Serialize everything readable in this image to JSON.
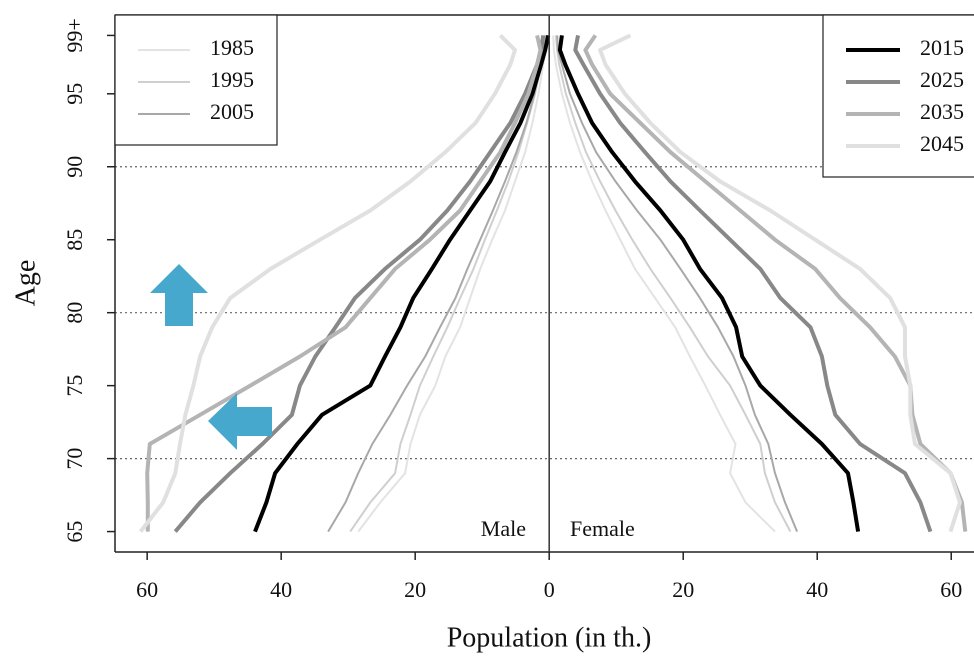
{
  "chart_data": {
    "type": "pyramid-line",
    "xlabel": "Population (in th.)",
    "ylabel": "Age",
    "annotations": {
      "male": "Male",
      "female": "Female"
    },
    "ages": [
      65,
      67,
      69,
      71,
      73,
      75,
      77,
      79,
      81,
      83,
      85,
      87,
      89,
      91,
      93,
      95,
      97,
      98,
      99
    ],
    "xlim": [
      -64.8,
      63.4
    ],
    "xticks": [
      {
        "value": -60,
        "label": "60"
      },
      {
        "value": -40,
        "label": "40"
      },
      {
        "value": -20,
        "label": "20"
      },
      0,
      20,
      40,
      60
    ],
    "ylim": [
      63.6,
      100.4
    ],
    "yticks": [
      65,
      70,
      75,
      80,
      85,
      90,
      95,
      {
        "value": 99,
        "label": "99+"
      }
    ],
    "grid_y": [
      70,
      80,
      90
    ],
    "zero_line": true,
    "series": [
      {
        "name": "1985",
        "color": "#e3e3e3",
        "width": 2,
        "legend": "top-left",
        "male": [
          -28.5,
          -25.2,
          -21.5,
          -20.7,
          -19.3,
          -17,
          -15.5,
          -13.3,
          -11.8,
          -10.3,
          -8.5,
          -6.6,
          -5.1,
          -3.6,
          -2.5,
          -1.6,
          -0.9,
          -0.6,
          -0.4
        ],
        "female": [
          33.7,
          29.3,
          27,
          27.8,
          25.5,
          23.3,
          21,
          18.8,
          15.8,
          12.8,
          10.6,
          8.4,
          6.4,
          4.6,
          3.1,
          1.9,
          1,
          0.7,
          0.6
        ]
      },
      {
        "name": "1995",
        "color": "#cfcfcf",
        "width": 2,
        "legend": "top-left",
        "male": [
          -29.7,
          -26.7,
          -23,
          -22.2,
          -20.7,
          -19.3,
          -17.3,
          -15.2,
          -13.3,
          -11.3,
          -9.6,
          -7.8,
          -6.1,
          -4.6,
          -3.3,
          -2.1,
          -1.2,
          -0.9,
          -0.6
        ],
        "female": [
          36,
          33.7,
          32.2,
          31.5,
          29.3,
          27,
          23.7,
          21,
          18.1,
          15.1,
          12.4,
          9.9,
          7.6,
          5.5,
          3.9,
          2.5,
          1.5,
          1.2,
          1
        ]
      },
      {
        "name": "2005",
        "color": "#a8a8a8",
        "width": 2,
        "legend": "top-left",
        "male": [
          -33,
          -30.4,
          -28.5,
          -26.4,
          -23.7,
          -21.2,
          -18.5,
          -16.3,
          -14,
          -12.2,
          -10.3,
          -8.4,
          -6.6,
          -4.9,
          -3.4,
          -2.2,
          -1.3,
          -0.9,
          -0.6
        ],
        "female": [
          37,
          35.2,
          33.7,
          32.7,
          30.7,
          29.3,
          27.5,
          25.2,
          22.5,
          19.6,
          16.6,
          13.1,
          9.9,
          7,
          4.9,
          3.1,
          1.9,
          1.3,
          1.2
        ]
      },
      {
        "name": "2015",
        "color": "#000000",
        "width": 4,
        "legend": "top-right",
        "male": [
          -43.9,
          -42.2,
          -40.9,
          -37.6,
          -33.9,
          -26.7,
          -24.5,
          -22.2,
          -20.3,
          -17.5,
          -14.8,
          -11.8,
          -8.8,
          -6.6,
          -4.3,
          -2.5,
          -1.2,
          -0.6,
          -0.15
        ],
        "female": [
          46.1,
          45.4,
          44.6,
          40.7,
          36,
          31.5,
          28.8,
          27.9,
          25.8,
          22.5,
          20,
          16.6,
          12.8,
          9.4,
          6.4,
          4.3,
          2.4,
          1.6,
          1.9
        ]
      },
      {
        "name": "2025",
        "color": "#888888",
        "width": 4,
        "legend": "top-right",
        "male": [
          -55.8,
          -52.1,
          -47.6,
          -42.8,
          -38.4,
          -37.2,
          -34.9,
          -31.9,
          -29,
          -24.5,
          -19.3,
          -15.2,
          -11.8,
          -8.8,
          -5.8,
          -3.6,
          -1.8,
          -1.2,
          -0.9
        ],
        "female": [
          56.9,
          55.4,
          53.1,
          46.4,
          42.7,
          41.5,
          40.7,
          39,
          34.5,
          31.5,
          27,
          22.5,
          18.1,
          14.3,
          10.6,
          7.6,
          5.1,
          3.9,
          4.3
        ]
      },
      {
        "name": "2035",
        "color": "#b4b4b4",
        "width": 4,
        "legend": "top-right",
        "male": [
          -59.9,
          -59.9,
          -60,
          -59.6,
          -52.1,
          -44.6,
          -37.2,
          -30.4,
          -26.7,
          -23,
          -17.8,
          -13.3,
          -10.3,
          -7.3,
          -5.1,
          -3.1,
          -1.8,
          -1.3,
          -1.8
        ],
        "female": [
          62.1,
          61.6,
          59.9,
          55.4,
          54.2,
          53.9,
          51.6,
          47.9,
          43.4,
          39.7,
          33.7,
          28.5,
          23.3,
          18.1,
          13.6,
          9.1,
          6.4,
          5.4,
          6.9
        ]
      },
      {
        "name": "2045",
        "color": "#e0e0e0",
        "width": 4,
        "legend": "top-right",
        "male": [
          -61,
          -57.6,
          -55.8,
          -55.1,
          -54.3,
          -53.1,
          -52.1,
          -50.3,
          -47.6,
          -41.6,
          -34.2,
          -26.7,
          -20.7,
          -15.5,
          -11,
          -8.1,
          -5.8,
          -5.1,
          -7.3
        ],
        "female": [
          59.9,
          61.3,
          59.9,
          54.6,
          53.9,
          53.9,
          53.1,
          53.1,
          50.9,
          46.4,
          39.7,
          33,
          25.5,
          19.6,
          15.1,
          11.3,
          8.4,
          7.6,
          12.1
        ]
      }
    ]
  }
}
